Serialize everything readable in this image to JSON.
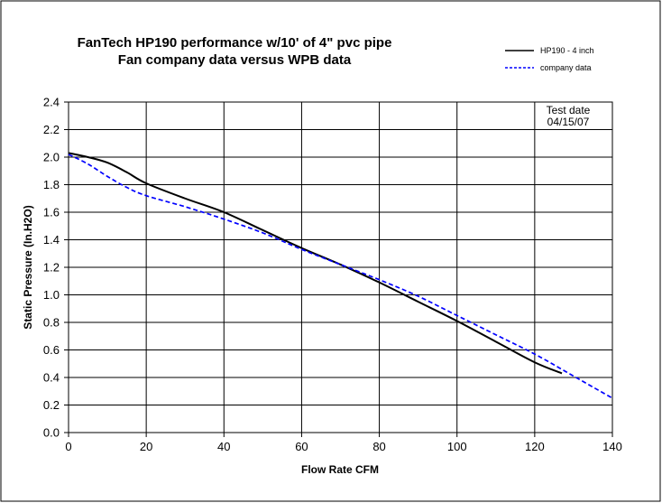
{
  "chart_data": {
    "type": "line",
    "title_lines": [
      "FanTech HP190 performance w/10' of 4\" pvc pipe",
      "Fan company data versus WPB data"
    ],
    "xlabel": "Flow Rate CFM",
    "ylabel": "Static Pressure (In.H2O)",
    "xlim": [
      0,
      140
    ],
    "ylim": [
      0,
      2.4
    ],
    "x_ticks": [
      "0",
      "20",
      "40",
      "60",
      "80",
      "100",
      "120",
      "140"
    ],
    "y_ticks": [
      "0.0",
      "0.2",
      "0.4",
      "0.6",
      "0.8",
      "1.0",
      "1.2",
      "1.4",
      "1.6",
      "1.8",
      "2.0",
      "2.2",
      "2.4"
    ],
    "x_tick_values": [
      0,
      20,
      40,
      60,
      80,
      100,
      120,
      140
    ],
    "y_tick_values": [
      0,
      0.2,
      0.4,
      0.6,
      0.8,
      1.0,
      1.2,
      1.4,
      1.6,
      1.8,
      2.0,
      2.2,
      2.4
    ],
    "grid": "vertical and horizontal",
    "legend_position": "top-right",
    "annotation": [
      "Test date",
      "04/15/07"
    ],
    "series": [
      {
        "name": "HP190 - 4 inch",
        "color": "#000000",
        "dash": "solid",
        "x": [
          0,
          5,
          10,
          15,
          20,
          30,
          40,
          50,
          60,
          70,
          80,
          90,
          100,
          110,
          120,
          127
        ],
        "y": [
          2.03,
          2.0,
          1.96,
          1.89,
          1.81,
          1.7,
          1.6,
          1.47,
          1.34,
          1.22,
          1.09,
          0.95,
          0.81,
          0.66,
          0.51,
          0.43
        ]
      },
      {
        "name": "company data",
        "color": "#0000ff",
        "dash": "dashed",
        "x": [
          0,
          5,
          10,
          15,
          20,
          30,
          40,
          50,
          60,
          70,
          80,
          90,
          100,
          110,
          120,
          130,
          140
        ],
        "y": [
          2.02,
          1.95,
          1.86,
          1.78,
          1.72,
          1.64,
          1.55,
          1.45,
          1.33,
          1.22,
          1.11,
          0.99,
          0.85,
          0.71,
          0.57,
          0.41,
          0.25
        ]
      }
    ]
  }
}
